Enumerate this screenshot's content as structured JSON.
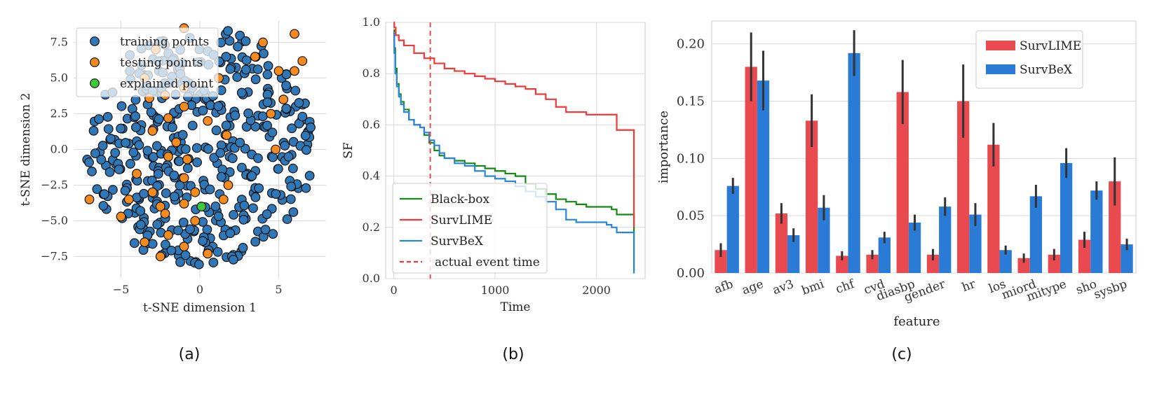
{
  "colors": {
    "train": "#2f77b6",
    "test": "#f58b1f",
    "explained": "#3ec93a",
    "blackbox": "#138a13",
    "survlime": "#f03a3a",
    "survbex": "#2a86dc",
    "bar_red": "#e84a4f",
    "bar_blue": "#2a7bd6",
    "grid": "#d9d9d9",
    "err": "#333333"
  },
  "captions": {
    "a": "(a)",
    "b": "(b)",
    "c": "(c)"
  },
  "chart_data": [
    {
      "type": "scatter",
      "panel": "a",
      "xlabel": "t-SNE dimension 1",
      "ylabel": "t-SNE dimension 2",
      "xlim": [
        -8,
        8
      ],
      "ylim": [
        -9,
        9
      ],
      "xticks": [
        -5,
        0,
        5
      ],
      "xtick_labels": [
        "−5",
        "0",
        "5"
      ],
      "yticks": [
        -7.5,
        -5.0,
        -2.5,
        0.0,
        2.5,
        5.0,
        7.5
      ],
      "ytick_labels": [
        "−7.5",
        "−5.0",
        "−2.5",
        "0.0",
        "2.5",
        "5.0",
        "7.5"
      ],
      "legend": [
        "training points",
        "testing points",
        "explained point"
      ],
      "legend_loc": "top-left",
      "explained_point": [
        0.1,
        -4.0
      ],
      "testing_points": [
        [
          -7,
          -3.5
        ],
        [
          -1,
          8.5
        ],
        [
          -2.8,
          7
        ],
        [
          -3.5,
          5
        ],
        [
          -1,
          4.3
        ],
        [
          1.2,
          5
        ],
        [
          -3.2,
          3.6
        ],
        [
          -2.2,
          3.8
        ],
        [
          -1,
          3
        ],
        [
          -2,
          2.2
        ],
        [
          0.5,
          2
        ],
        [
          4.5,
          2.5
        ],
        [
          5.3,
          3.5
        ],
        [
          6,
          5.5
        ],
        [
          6.5,
          6.2
        ],
        [
          6,
          8.1
        ],
        [
          5,
          5.5
        ],
        [
          4,
          7.5
        ],
        [
          3.5,
          6.5
        ],
        [
          -3,
          1.3
        ],
        [
          1.7,
          1
        ],
        [
          -1.5,
          0.5
        ],
        [
          -2,
          -0.5
        ],
        [
          4.8,
          0
        ],
        [
          -4,
          -1.7
        ],
        [
          -0.8,
          -0.7
        ],
        [
          -1,
          -2
        ],
        [
          -0.3,
          -3
        ],
        [
          1.8,
          -2.5
        ],
        [
          1.5,
          -3.5
        ],
        [
          -3,
          -3
        ],
        [
          -4.5,
          -3.5
        ],
        [
          -2.5,
          -4
        ],
        [
          -1,
          -3.8
        ],
        [
          -2,
          -6
        ],
        [
          -3.5,
          -6.5
        ],
        [
          -1,
          -6.8
        ],
        [
          0.5,
          -7.3
        ],
        [
          -2.5,
          -7.5
        ],
        [
          -0.3,
          -5
        ],
        [
          -2.2,
          -4.5
        ],
        [
          -5,
          -4.7
        ]
      ]
    },
    {
      "type": "line",
      "panel": "b",
      "xlabel": "Time",
      "ylabel": "SF",
      "xlim": [
        -80,
        2480
      ],
      "ylim": [
        0.0,
        1.0
      ],
      "xticks": [
        0,
        1000,
        2000
      ],
      "xtick_labels": [
        "0",
        "1000",
        "2000"
      ],
      "yticks": [
        0.0,
        0.2,
        0.4,
        0.6,
        0.8,
        1.0
      ],
      "ytick_labels": [
        "0.0",
        "0.2",
        "0.4",
        "0.6",
        "0.8",
        "1.0"
      ],
      "actual_event_time": 360,
      "legend_loc": "bottom-left",
      "series": [
        {
          "name": "Black-box",
          "color_key": "blackbox",
          "x": [
            0,
            5,
            15,
            30,
            50,
            70,
            100,
            150,
            200,
            260,
            300,
            350,
            400,
            450,
            500,
            600,
            700,
            800,
            900,
            1000,
            1100,
            1200,
            1300,
            1400,
            1500,
            1600,
            1700,
            1800,
            1900,
            2000,
            2100,
            2150,
            2200,
            2300,
            2350,
            2370
          ],
          "y": [
            0.97,
            0.9,
            0.82,
            0.76,
            0.72,
            0.69,
            0.66,
            0.62,
            0.6,
            0.59,
            0.56,
            0.53,
            0.5,
            0.48,
            0.47,
            0.46,
            0.45,
            0.44,
            0.43,
            0.42,
            0.41,
            0.4,
            0.37,
            0.35,
            0.33,
            0.31,
            0.3,
            0.29,
            0.28,
            0.28,
            0.28,
            0.27,
            0.25,
            0.25,
            0.25,
            0.03
          ]
        },
        {
          "name": "SurvLIME",
          "color_key": "survlime",
          "x": [
            0,
            5,
            20,
            50,
            100,
            200,
            300,
            400,
            500,
            600,
            700,
            800,
            900,
            1000,
            1100,
            1200,
            1300,
            1400,
            1500,
            1600,
            1700,
            1800,
            1900,
            2000,
            2100,
            2150,
            2200,
            2300,
            2360,
            2370
          ],
          "y": [
            1.0,
            0.98,
            0.95,
            0.93,
            0.91,
            0.88,
            0.86,
            0.84,
            0.82,
            0.81,
            0.8,
            0.79,
            0.78,
            0.77,
            0.76,
            0.75,
            0.74,
            0.72,
            0.7,
            0.67,
            0.65,
            0.65,
            0.64,
            0.64,
            0.64,
            0.64,
            0.58,
            0.58,
            0.58,
            0.2
          ]
        },
        {
          "name": "SurvBeX",
          "color_key": "survbex",
          "x": [
            0,
            5,
            15,
            30,
            50,
            70,
            100,
            150,
            200,
            260,
            300,
            350,
            400,
            450,
            500,
            600,
            700,
            800,
            900,
            1000,
            1100,
            1200,
            1300,
            1400,
            1500,
            1600,
            1700,
            1800,
            1900,
            2000,
            2100,
            2150,
            2200,
            2300,
            2350,
            2370
          ],
          "y": [
            0.96,
            0.88,
            0.8,
            0.75,
            0.71,
            0.68,
            0.65,
            0.62,
            0.6,
            0.59,
            0.57,
            0.54,
            0.52,
            0.49,
            0.47,
            0.45,
            0.44,
            0.42,
            0.4,
            0.39,
            0.38,
            0.36,
            0.34,
            0.32,
            0.3,
            0.27,
            0.23,
            0.22,
            0.22,
            0.22,
            0.21,
            0.2,
            0.18,
            0.18,
            0.18,
            0.02
          ]
        }
      ],
      "legend_labels": [
        "Black-box",
        "SurvLIME",
        "SurvBeX",
        "actual event time"
      ]
    },
    {
      "type": "bar",
      "panel": "c",
      "xlabel": "feature",
      "ylabel": "importance",
      "ylim": [
        0.0,
        0.22
      ],
      "yticks": [
        0.0,
        0.05,
        0.1,
        0.15,
        0.2
      ],
      "ytick_labels": [
        "0.00",
        "0.05",
        "0.10",
        "0.15",
        "0.20"
      ],
      "categories": [
        "afb",
        "age",
        "av3",
        "bmi",
        "chf",
        "cvd",
        "diasbp",
        "gender",
        "hr",
        "los",
        "miord",
        "mitype",
        "sho",
        "sysbp"
      ],
      "legend_loc": "top-right",
      "series": [
        {
          "name": "SurvLIME",
          "color_key": "bar_red",
          "values": [
            0.02,
            0.18,
            0.052,
            0.133,
            0.015,
            0.016,
            0.158,
            0.016,
            0.15,
            0.112,
            0.013,
            0.016,
            0.029,
            0.08
          ],
          "err": [
            0.006,
            0.03,
            0.009,
            0.023,
            0.004,
            0.004,
            0.028,
            0.005,
            0.032,
            0.019,
            0.004,
            0.005,
            0.007,
            0.021
          ]
        },
        {
          "name": "SurvBeX",
          "color_key": "bar_blue",
          "values": [
            0.076,
            0.168,
            0.033,
            0.057,
            0.192,
            0.031,
            0.044,
            0.058,
            0.051,
            0.02,
            0.067,
            0.096,
            0.072,
            0.025
          ],
          "err": [
            0.007,
            0.026,
            0.006,
            0.011,
            0.02,
            0.005,
            0.007,
            0.008,
            0.01,
            0.004,
            0.01,
            0.013,
            0.008,
            0.005
          ]
        }
      ]
    }
  ]
}
